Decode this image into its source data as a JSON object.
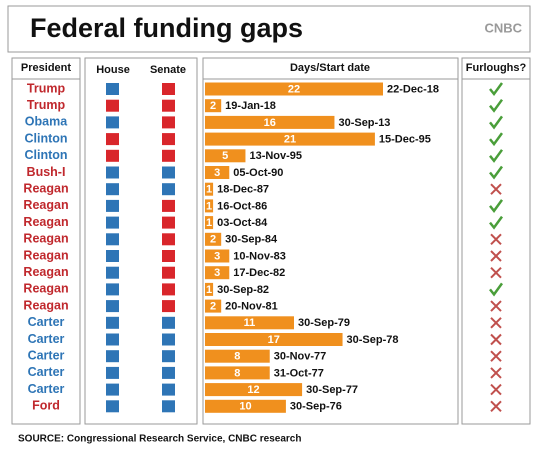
{
  "chart_data": {
    "type": "table-bar",
    "title": "Federal funding gaps",
    "logo": "CNBC",
    "headers": [
      "President",
      "House",
      "Senate",
      "Days/Start date",
      "Furloughs?"
    ],
    "presidents": [
      "Trump",
      "Trump",
      "Obama",
      "Clinton",
      "Clinton",
      "Bush-I",
      "Reagan",
      "Reagan",
      "Reagan",
      "Reagan",
      "Reagan",
      "Reagan",
      "Reagan",
      "Reagan",
      "Carter",
      "Carter",
      "Carter",
      "Carter",
      "Carter",
      "Ford"
    ],
    "president_colors": [
      "#c0282d",
      "#c0282d",
      "#2e75b6",
      "#2e75b6",
      "#2e75b6",
      "#c0282d",
      "#c0282d",
      "#c0282d",
      "#c0282d",
      "#c0282d",
      "#c0282d",
      "#c0282d",
      "#c0282d",
      "#c0282d",
      "#2e75b6",
      "#2e75b6",
      "#2e75b6",
      "#2e75b6",
      "#2e75b6",
      "#c0282d"
    ],
    "house_colors": [
      "#2e75b6",
      "#d9262b",
      "#2e75b6",
      "#d9262b",
      "#d9262b",
      "#2e75b6",
      "#2e75b6",
      "#2e75b6",
      "#2e75b6",
      "#2e75b6",
      "#2e75b6",
      "#2e75b6",
      "#2e75b6",
      "#2e75b6",
      "#2e75b6",
      "#2e75b6",
      "#2e75b6",
      "#2e75b6",
      "#2e75b6",
      "#2e75b6"
    ],
    "senate_colors": [
      "#d9262b",
      "#d9262b",
      "#d9262b",
      "#d9262b",
      "#d9262b",
      "#2e75b6",
      "#2e75b6",
      "#d9262b",
      "#d9262b",
      "#d9262b",
      "#d9262b",
      "#d9262b",
      "#d9262b",
      "#d9262b",
      "#2e75b6",
      "#2e75b6",
      "#2e75b6",
      "#2e75b6",
      "#2e75b6",
      "#2e75b6"
    ],
    "values": [
      22,
      2,
      16,
      21,
      5,
      3,
      1,
      1,
      1,
      2,
      3,
      3,
      1,
      2,
      11,
      17,
      8,
      8,
      12,
      10
    ],
    "dates": [
      "22-Dec-18",
      "19-Jan-18",
      "30-Sep-13",
      "15-Dec-95",
      "13-Nov-95",
      "05-Oct-90",
      "18-Dec-87",
      "16-Oct-86",
      "03-Oct-84",
      "30-Sep-84",
      "10-Nov-83",
      "17-Dec-82",
      "30-Sep-82",
      "20-Nov-81",
      "30-Sep-79",
      "30-Sep-78",
      "30-Nov-77",
      "31-Oct-77",
      "30-Sep-77",
      "30-Sep-76"
    ],
    "furloughs": [
      true,
      true,
      true,
      true,
      true,
      true,
      false,
      true,
      true,
      false,
      false,
      false,
      true,
      false,
      false,
      false,
      false,
      false,
      false,
      false
    ],
    "bar_color": "#f0901e",
    "source": "SOURCE: Congressional Research Service, CNBC research"
  }
}
